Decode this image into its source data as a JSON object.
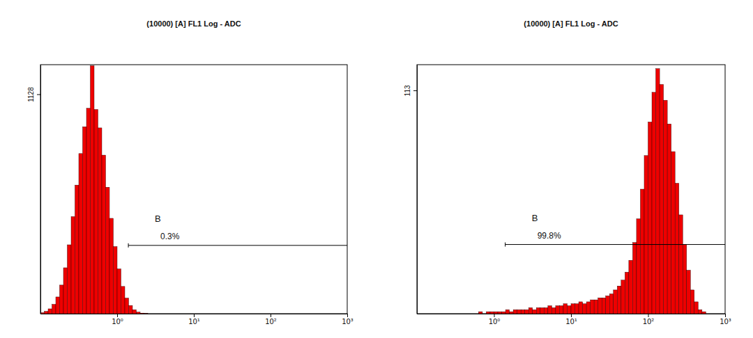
{
  "chart_data": [
    {
      "type": "histogram",
      "title": "(10000) [A] FL1 Log - ADC",
      "color": "#ee0000",
      "log": "x",
      "xlim": [
        0.1,
        1000
      ],
      "xticks": [
        {
          "value": 1,
          "label": "10⁰"
        },
        {
          "value": 10,
          "label": "10¹"
        },
        {
          "value": 100,
          "label": "10²"
        },
        {
          "value": 1000,
          "label": "10³"
        }
      ],
      "ylim": [
        0,
        1280
      ],
      "yticks": [
        1128
      ],
      "bins": [
        0.1,
        0.1122,
        0.1259,
        0.1413,
        0.1585,
        0.1778,
        0.1995,
        0.2239,
        0.2512,
        0.2818,
        0.3162,
        0.3548,
        0.3981,
        0.4467,
        0.5012,
        0.5623,
        0.631,
        0.7079,
        0.7943,
        0.8913,
        1,
        1.122,
        1.259,
        1.413,
        1.585,
        1.778,
        1.995,
        2.239,
        2.512,
        2.818,
        3.162,
        3.548,
        3.981,
        4.467,
        5.012,
        5.623,
        6.31,
        7.079,
        7.943,
        8.913,
        10,
        11.22,
        12.59,
        14.13,
        15.85,
        17.78,
        19.95,
        22.39,
        25.12,
        28.18,
        31.62,
        35.48,
        39.81,
        44.67,
        50.12,
        56.23,
        63.1,
        70.79,
        79.43,
        89.13,
        100,
        112.2,
        125.9,
        141.3,
        158.5,
        177.8,
        199.5,
        223.9,
        251.2,
        281.8,
        316.2,
        354.8,
        398.1,
        446.7,
        501.2,
        562.3,
        631,
        707.9,
        794.3,
        891.3,
        1000
      ],
      "counts": [
        5,
        12,
        25,
        48,
        86,
        147,
        236,
        354,
        499,
        661,
        823,
        961,
        1056,
        1275,
        1050,
        955,
        815,
        650,
        490,
        345,
        230,
        140,
        80,
        42,
        20,
        8,
        3,
        1,
        0,
        0,
        0,
        0,
        0,
        0,
        0,
        0,
        0,
        0,
        0,
        0,
        0,
        0,
        0,
        0,
        0,
        0,
        0,
        0,
        0,
        0,
        0,
        0,
        0,
        0,
        0,
        0,
        0,
        0,
        0,
        0,
        0,
        0,
        0,
        0,
        0,
        0,
        0,
        0,
        0,
        0,
        0,
        0,
        0,
        0,
        0,
        0,
        0,
        0
      ],
      "gate": {
        "name": "B",
        "label": "0.3%",
        "x": [
          1.4,
          1000
        ],
        "y": 351
      }
    },
    {
      "type": "histogram",
      "title": "(10000) [A] FL1 Log - ADC",
      "color": "#ee0000",
      "log": "x",
      "xlim": [
        0.1,
        1000
      ],
      "xticks": [
        {
          "value": 1,
          "label": "10⁰"
        },
        {
          "value": 10,
          "label": "10¹"
        },
        {
          "value": 100,
          "label": "10²"
        },
        {
          "value": 1000,
          "label": "10³"
        }
      ],
      "ylim": [
        0,
        126
      ],
      "yticks": [
        113
      ],
      "bins": [
        0.1,
        0.1122,
        0.1259,
        0.1413,
        0.1585,
        0.1778,
        0.1995,
        0.2239,
        0.2512,
        0.2818,
        0.3162,
        0.3548,
        0.3981,
        0.4467,
        0.5012,
        0.5623,
        0.631,
        0.7079,
        0.7943,
        0.8913,
        1,
        1.122,
        1.259,
        1.413,
        1.585,
        1.778,
        1.995,
        2.239,
        2.512,
        2.818,
        3.162,
        3.548,
        3.981,
        4.467,
        5.012,
        5.623,
        6.31,
        7.079,
        7.943,
        8.913,
        10,
        11.22,
        12.59,
        14.13,
        15.85,
        17.78,
        19.95,
        22.39,
        25.12,
        28.18,
        31.62,
        35.48,
        39.81,
        44.67,
        50.12,
        56.23,
        63.1,
        70.79,
        79.43,
        89.13,
        100,
        112.2,
        125.9,
        141.3,
        158.5,
        177.8,
        199.5,
        223.9,
        251.2,
        281.8,
        316.2,
        354.8,
        398.1,
        446.7,
        501.2,
        562.3,
        631,
        707.9,
        794.3,
        891.3,
        1000
      ],
      "counts": [
        0,
        0,
        0,
        0,
        0,
        0,
        0,
        0,
        0,
        0,
        0,
        0,
        0,
        0,
        0,
        0,
        1,
        0,
        1,
        1,
        1,
        1,
        1,
        2,
        1,
        2,
        2,
        2,
        2,
        3,
        2,
        3,
        3,
        3,
        4,
        3,
        4,
        4,
        5,
        4,
        5,
        5,
        6,
        5,
        6,
        7,
        7,
        8,
        8,
        9,
        10,
        12,
        14,
        17,
        21,
        27,
        36,
        48,
        63,
        80,
        97,
        112,
        124,
        116,
        108,
        96,
        82,
        66,
        50,
        35,
        22,
        12,
        6,
        2,
        1,
        0,
        0,
        0,
        0,
        0
      ],
      "gate": {
        "name": "B",
        "label": "99.8%",
        "x": [
          1.4,
          1000
        ],
        "y": 35
      }
    }
  ]
}
